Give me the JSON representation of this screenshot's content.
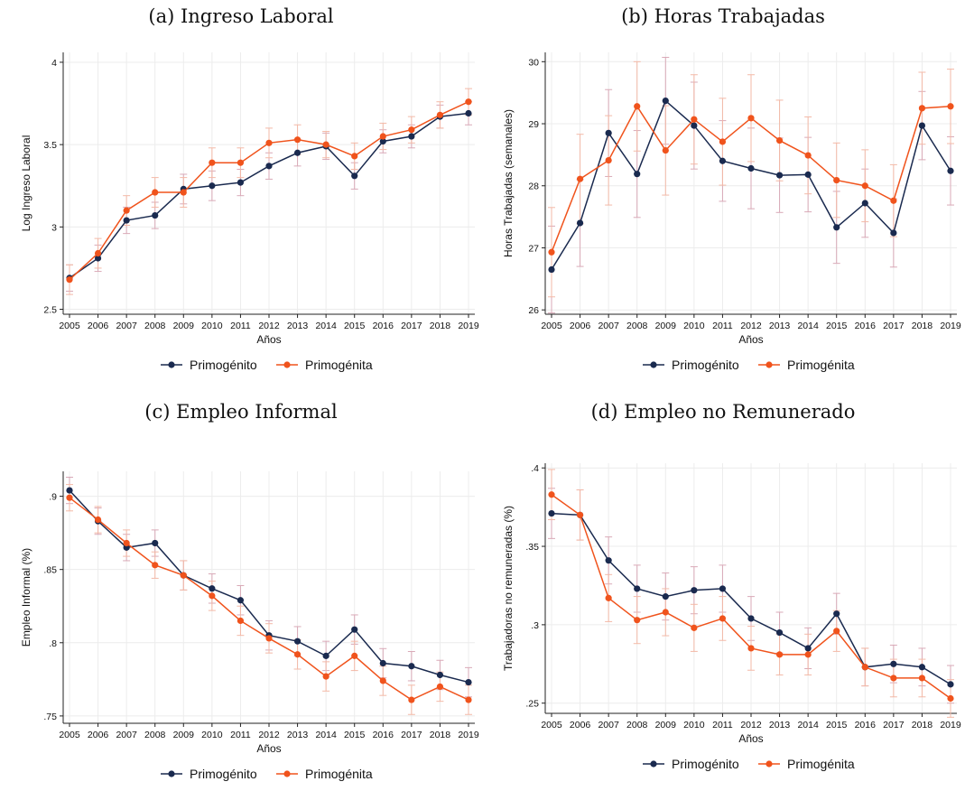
{
  "colors": {
    "primogenito": "#1a2a4f",
    "primogenita": "#f0531c",
    "grid": "#ececec",
    "ci_primogenito": "#d9a9b7",
    "ci_primogenita": "#f3b9a7"
  },
  "chart_data": [
    {
      "type": "line",
      "title": "(a) Ingreso Laboral",
      "xlabel": "Años",
      "ylabel": "Log Ingreso Laboral",
      "ylim": [
        2.47,
        4.06
      ],
      "yticks": [
        2.5,
        3,
        3.5,
        4
      ],
      "ytick_labels": [
        "2.5",
        "3",
        "3.5",
        "4"
      ],
      "x": [
        2005,
        2006,
        2007,
        2008,
        2009,
        2010,
        2011,
        2012,
        2013,
        2014,
        2015,
        2016,
        2017,
        2018,
        2019
      ],
      "grid": true,
      "legend_position": "bottom",
      "series": [
        {
          "name": "Primogénito",
          "values": [
            2.69,
            2.81,
            3.04,
            3.07,
            3.23,
            3.25,
            3.27,
            3.37,
            3.45,
            3.49,
            3.31,
            3.52,
            3.55,
            3.67,
            3.69
          ],
          "ci": [
            0.08,
            0.08,
            0.08,
            0.08,
            0.09,
            0.09,
            0.08,
            0.08,
            0.08,
            0.08,
            0.08,
            0.07,
            0.07,
            0.07,
            0.07
          ]
        },
        {
          "name": "Primogénita",
          "values": [
            2.68,
            2.84,
            3.1,
            3.21,
            3.21,
            3.39,
            3.39,
            3.51,
            3.53,
            3.5,
            3.43,
            3.55,
            3.59,
            3.68,
            3.76
          ],
          "ci": [
            0.09,
            0.09,
            0.09,
            0.09,
            0.09,
            0.09,
            0.09,
            0.09,
            0.09,
            0.08,
            0.08,
            0.08,
            0.08,
            0.08,
            0.08
          ]
        }
      ]
    },
    {
      "type": "line",
      "title": "(b) Horas Trabajadas",
      "xlabel": "Años",
      "ylabel": "Horas Trabajadas (semanales)",
      "ylim": [
        25.93,
        30.15
      ],
      "yticks": [
        26,
        27,
        28,
        29,
        30
      ],
      "ytick_labels": [
        "26",
        "27",
        "28",
        "29",
        "30"
      ],
      "x": [
        2005,
        2006,
        2007,
        2008,
        2009,
        2010,
        2011,
        2012,
        2013,
        2014,
        2015,
        2016,
        2017,
        2018,
        2019
      ],
      "grid": true,
      "legend_position": "bottom",
      "series": [
        {
          "name": "Primogénito",
          "values": [
            26.65,
            27.4,
            28.85,
            28.19,
            29.37,
            28.97,
            28.4,
            28.28,
            28.17,
            28.18,
            27.33,
            27.72,
            27.24,
            28.97,
            28.24
          ],
          "ci": [
            0.7,
            0.7,
            0.7,
            0.7,
            0.7,
            0.7,
            0.65,
            0.65,
            0.6,
            0.6,
            0.58,
            0.55,
            0.55,
            0.55,
            0.55
          ]
        },
        {
          "name": "Primogénita",
          "values": [
            26.93,
            28.11,
            28.41,
            29.28,
            28.57,
            29.07,
            28.71,
            29.09,
            28.73,
            28.49,
            28.09,
            28.0,
            27.76,
            29.25,
            29.28
          ],
          "ci": [
            0.72,
            0.72,
            0.72,
            0.72,
            0.72,
            0.72,
            0.7,
            0.7,
            0.65,
            0.62,
            0.6,
            0.58,
            0.58,
            0.58,
            0.6
          ]
        }
      ]
    },
    {
      "type": "line",
      "title": "(c) Empleo Informal",
      "xlabel": "Años",
      "ylabel": "Empleo Informal (%)",
      "ylim": [
        0.745,
        0.917
      ],
      "yticks": [
        0.75,
        0.8,
        0.85,
        0.9
      ],
      "ytick_labels": [
        ".75",
        ".8",
        ".85",
        ".9"
      ],
      "x": [
        2005,
        2006,
        2007,
        2008,
        2009,
        2010,
        2011,
        2012,
        2013,
        2014,
        2015,
        2016,
        2017,
        2018,
        2019
      ],
      "grid": true,
      "legend_position": "bottom",
      "series": [
        {
          "name": "Primogénito",
          "values": [
            0.904,
            0.883,
            0.865,
            0.868,
            0.846,
            0.837,
            0.829,
            0.805,
            0.801,
            0.791,
            0.809,
            0.786,
            0.784,
            0.778,
            0.773
          ],
          "ci": [
            0.009,
            0.009,
            0.009,
            0.009,
            0.01,
            0.01,
            0.01,
            0.01,
            0.01,
            0.01,
            0.01,
            0.01,
            0.01,
            0.01,
            0.01
          ]
        },
        {
          "name": "Primogénita",
          "values": [
            0.899,
            0.884,
            0.868,
            0.853,
            0.846,
            0.832,
            0.815,
            0.803,
            0.792,
            0.777,
            0.791,
            0.774,
            0.761,
            0.77,
            0.761
          ],
          "ci": [
            0.009,
            0.009,
            0.009,
            0.009,
            0.01,
            0.01,
            0.01,
            0.01,
            0.01,
            0.01,
            0.01,
            0.01,
            0.01,
            0.01,
            0.01
          ]
        }
      ]
    },
    {
      "type": "line",
      "title": "(d) Empleo no Remunerado",
      "xlabel": "Años",
      "ylabel": "Trabajadoras no remuneradas (%)",
      "ylim": [
        0.2435,
        0.403
      ],
      "yticks": [
        0.25,
        0.3,
        0.35,
        0.4
      ],
      "ytick_labels": [
        ".25",
        ".3",
        ".35",
        ".4"
      ],
      "x": [
        2005,
        2006,
        2007,
        2008,
        2009,
        2010,
        2011,
        2012,
        2013,
        2014,
        2015,
        2016,
        2017,
        2018,
        2019
      ],
      "grid": true,
      "legend_position": "bottom",
      "series": [
        {
          "name": "Primogénito",
          "values": [
            0.371,
            0.37,
            0.341,
            0.323,
            0.318,
            0.322,
            0.323,
            0.304,
            0.295,
            0.285,
            0.307,
            0.273,
            0.275,
            0.273,
            0.262
          ],
          "ci": [
            0.016,
            0.016,
            0.015,
            0.015,
            0.015,
            0.015,
            0.015,
            0.014,
            0.013,
            0.013,
            0.013,
            0.012,
            0.012,
            0.012,
            0.012
          ]
        },
        {
          "name": "Primogénita",
          "values": [
            0.383,
            0.37,
            0.317,
            0.303,
            0.308,
            0.298,
            0.304,
            0.285,
            0.281,
            0.281,
            0.296,
            0.273,
            0.266,
            0.266,
            0.253
          ],
          "ci": [
            0.016,
            0.016,
            0.015,
            0.015,
            0.015,
            0.015,
            0.014,
            0.014,
            0.013,
            0.013,
            0.013,
            0.012,
            0.012,
            0.012,
            0.012
          ]
        }
      ]
    }
  ]
}
